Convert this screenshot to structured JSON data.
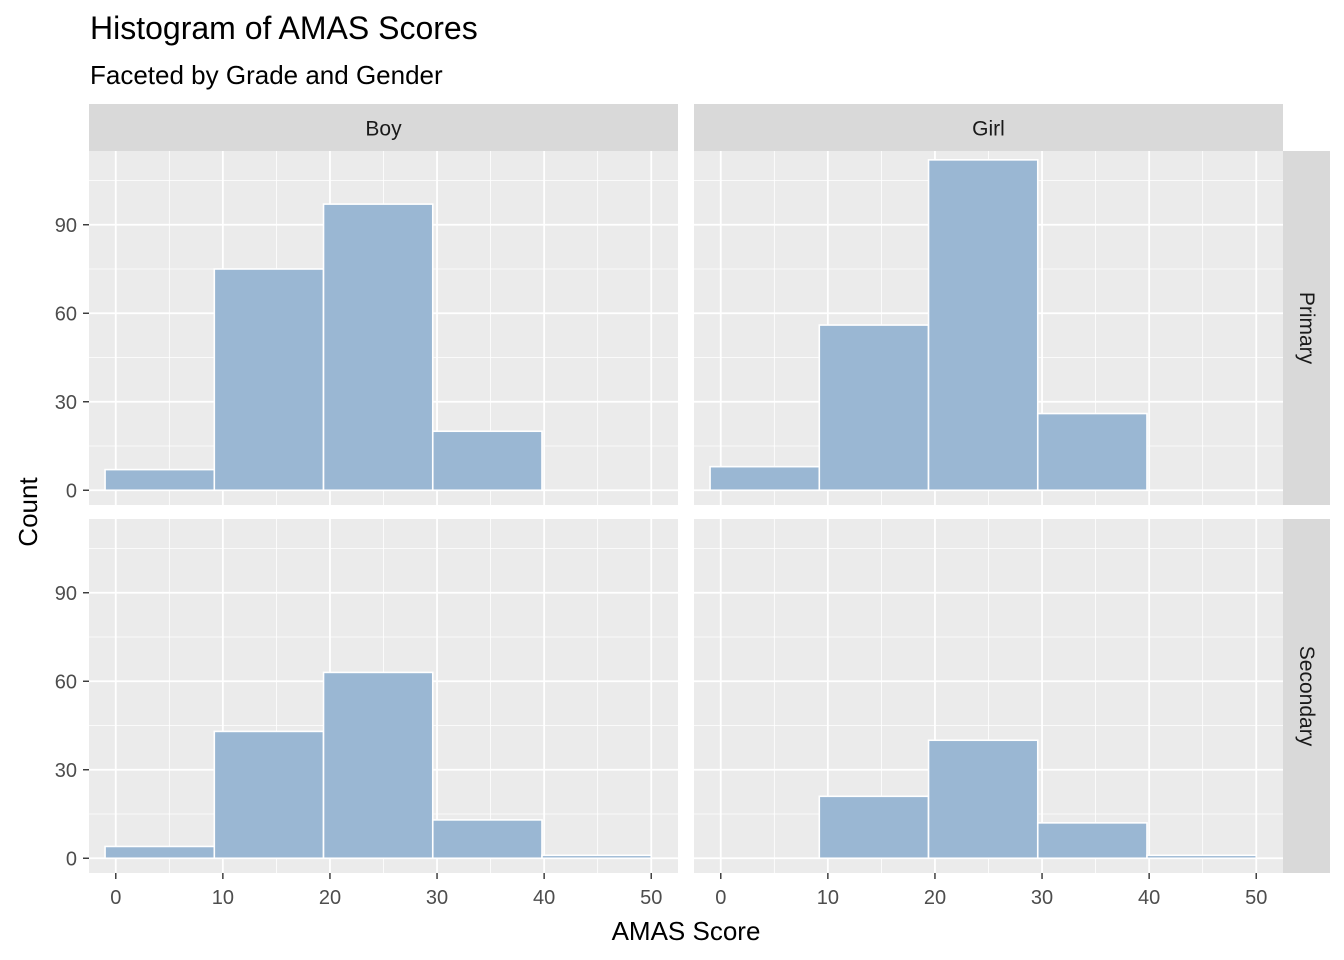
{
  "chart_data": {
    "type": "bar",
    "title": "Histogram of AMAS Scores",
    "subtitle": "Faceted by Grade and Gender",
    "xlabel": "AMAS Score",
    "ylabel": "Count",
    "xlim": [
      -2.5,
      52.5
    ],
    "ylim": [
      -5,
      115
    ],
    "x_ticks": [
      0,
      10,
      20,
      30,
      40,
      50
    ],
    "y_ticks": [
      0,
      30,
      60,
      90
    ],
    "bin_edges": [
      -1,
      9.2,
      19.4,
      29.6,
      39.8,
      50
    ],
    "bar_color": "#9AB7D3",
    "panel_background": "#EBEBEB",
    "strip_background": "#D9D9D9",
    "grid": true,
    "facet_columns": [
      "Boy",
      "Girl"
    ],
    "facet_rows": [
      "Primary",
      "Secondary"
    ],
    "panels": [
      {
        "column": "Boy",
        "row": "Primary",
        "counts": [
          7,
          75,
          97,
          20,
          0
        ]
      },
      {
        "column": "Girl",
        "row": "Primary",
        "counts": [
          8,
          56,
          112,
          26,
          0
        ]
      },
      {
        "column": "Boy",
        "row": "Secondary",
        "counts": [
          4,
          43,
          63,
          13,
          1
        ]
      },
      {
        "column": "Girl",
        "row": "Secondary",
        "counts": [
          0,
          21,
          40,
          12,
          1
        ]
      }
    ]
  }
}
